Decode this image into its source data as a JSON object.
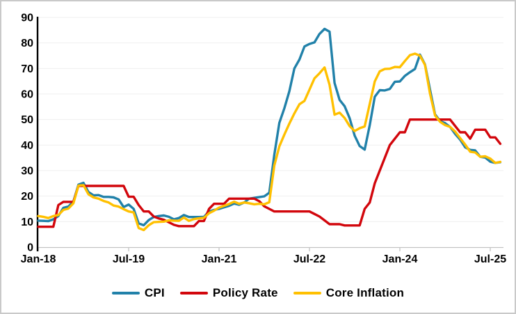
{
  "chart_data": {
    "type": "line",
    "title": "",
    "legend_position": "bottom",
    "grid": true,
    "x_axis": {
      "start": "Jan-2018",
      "end": "Sep-2025",
      "frequency": "monthly",
      "ticks": [
        "Jan-18",
        "Jul-19",
        "Jan-21",
        "Jul-22",
        "Jan-24",
        "Jul-25"
      ],
      "tick_month_index": [
        0,
        18,
        36,
        54,
        72,
        90
      ]
    },
    "y_axis": {
      "min": 0,
      "max": 90,
      "ticks": [
        0,
        10,
        20,
        30,
        40,
        50,
        60,
        70,
        80,
        90
      ]
    },
    "series": [
      {
        "name": "CPI",
        "color": "#2181A9",
        "values": [
          10.4,
          10.3,
          10.2,
          10.9,
          12.2,
          15.4,
          15.9,
          17.9,
          24.5,
          25.2,
          21.6,
          20.3,
          20.4,
          19.7,
          19.7,
          19.5,
          18.7,
          15.7,
          16.7,
          15.0,
          9.3,
          8.6,
          10.6,
          11.8,
          12.2,
          12.4,
          11.9,
          10.9,
          11.4,
          12.6,
          11.8,
          11.8,
          11.8,
          11.9,
          14.0,
          14.6,
          15.0,
          15.6,
          16.2,
          17.1,
          16.6,
          17.5,
          19.0,
          19.3,
          19.6,
          19.9,
          21.3,
          36.1,
          48.7,
          54.4,
          61.1,
          70.0,
          73.5,
          78.6,
          79.6,
          80.2,
          83.5,
          85.5,
          84.4,
          64.3,
          57.7,
          55.2,
          50.5,
          43.7,
          39.6,
          38.2,
          47.8,
          58.9,
          61.5,
          61.4,
          62.0,
          64.8,
          64.9,
          67.1,
          68.5,
          69.8,
          75.4,
          71.6,
          61.8,
          52.0,
          49.4,
          48.6,
          47.1,
          44.4,
          42.1,
          39.1,
          38.1,
          37.9,
          35.4,
          35.1,
          33.5,
          33.0,
          33.3
        ]
      },
      {
        "name": "Policy Rate",
        "color": "#D2060C",
        "values": [
          8,
          8,
          8,
          8,
          16.5,
          17.75,
          17.75,
          17.75,
          24,
          24,
          24,
          24,
          24,
          24,
          24,
          24,
          24,
          24,
          19.75,
          19.75,
          16.5,
          14,
          14,
          12,
          11.25,
          10.75,
          9.75,
          8.75,
          8.25,
          8.25,
          8.25,
          8.25,
          10.25,
          10.25,
          15,
          17,
          17,
          17,
          19,
          19,
          19,
          19,
          19,
          19,
          18,
          16,
          15,
          14,
          14,
          14,
          14,
          14,
          14,
          14,
          14,
          13,
          12,
          10.5,
          9,
          9,
          9,
          8.5,
          8.5,
          8.5,
          8.5,
          15,
          17.5,
          25,
          30,
          35,
          40,
          42.5,
          45,
          45,
          50,
          50,
          50,
          50,
          50,
          50,
          50,
          50,
          50,
          47.5,
          45,
          45,
          42.5,
          46,
          46,
          46,
          43,
          43,
          40.5
        ]
      },
      {
        "name": "Core Inflation",
        "color": "#FFC000",
        "values": [
          12.2,
          11.9,
          11.4,
          12.2,
          12.6,
          14.6,
          15.1,
          17.2,
          24.1,
          24.3,
          20.7,
          19.5,
          19.0,
          18.1,
          17.5,
          16.3,
          15.9,
          14.9,
          14.0,
          13.6,
          7.5,
          6.7,
          8.6,
          9.8,
          9.9,
          10.0,
          10.5,
          10.4,
          10.3,
          11.6,
          10.3,
          11.0,
          11.3,
          11.5,
          13.3,
          14.3,
          15.5,
          16.2,
          16.9,
          17.8,
          17.0,
          17.5,
          17.2,
          16.8,
          17.0,
          16.8,
          17.6,
          31.9,
          39.5,
          44.1,
          48.4,
          52.4,
          56.0,
          57.3,
          61.7,
          66.1,
          68.1,
          70.4,
          63.6,
          51.9,
          52.7,
          50.6,
          47.4,
          45.5,
          46.6,
          47.3,
          56.1,
          64.9,
          68.9,
          69.8,
          69.9,
          70.6,
          70.5,
          72.9,
          75.2,
          75.8,
          75.0,
          71.4,
          60.2,
          51.6,
          49.1,
          47.8,
          47.1,
          45.3,
          42.7,
          40.2,
          37.4,
          37.1,
          35.4,
          35.6,
          34.7,
          33.0,
          33.4
        ]
      }
    ]
  }
}
